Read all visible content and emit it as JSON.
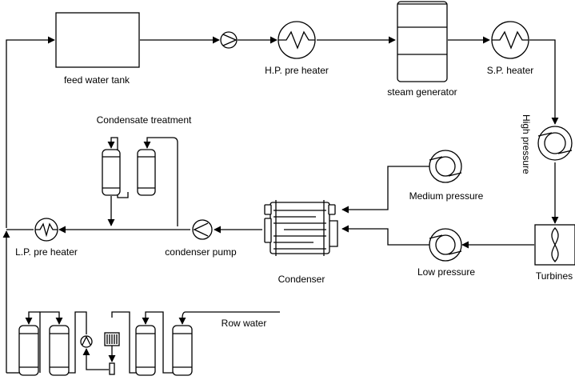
{
  "labels": {
    "feed_water_tank": "feed water tank",
    "hp_pre_heater": "H.P.  pre heater",
    "steam_generator": "steam generator",
    "sp_heater": "S.P.  heater",
    "high_pressure": "High pressure",
    "condensate_treatment": "Condensate treatment",
    "medium_pressure": "Medium pressure",
    "low_pressure": "Low pressure",
    "turbines": "Turbines",
    "condenser": "Condenser",
    "condenser_pump": "condenser pump",
    "lp_pre_heater": "L.P.  pre heater",
    "row_water": "Row water"
  }
}
